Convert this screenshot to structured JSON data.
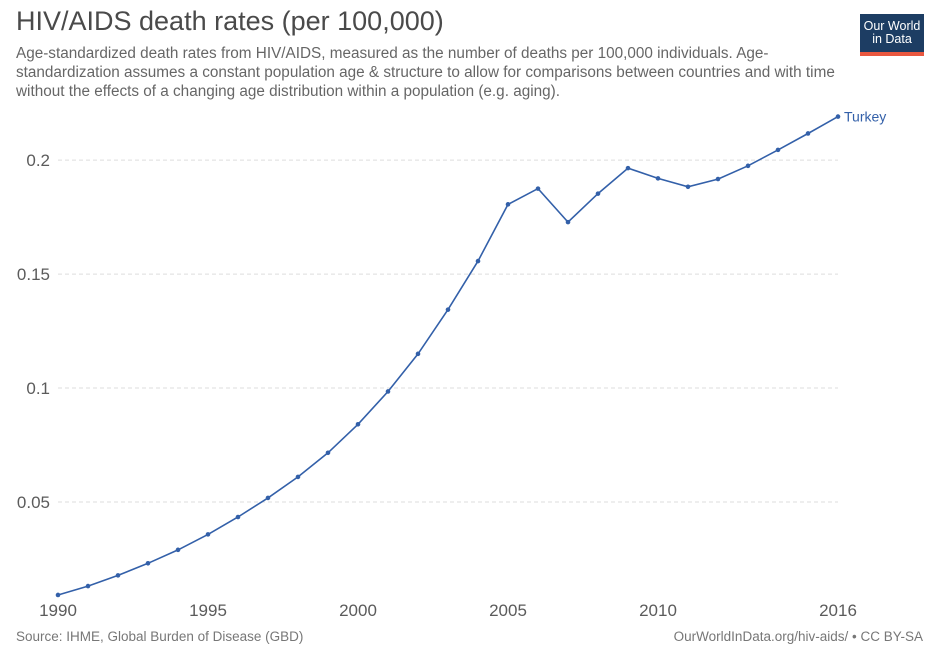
{
  "header": {
    "title": "HIV/AIDS death rates (per 100,000)",
    "subtitle": "Age-standardized death rates from HIV/AIDS, measured as the number of deaths per 100,000 individuals. Age-standardization assumes a constant population age & structure to allow for comparisons between countries and with time without the effects of a changing age distribution within a population (e.g. aging).",
    "logo_line1": "Our World",
    "logo_line2": "in Data"
  },
  "footer": {
    "source": "Source: IHME, Global Burden of Disease (GBD)",
    "license": "OurWorldInData.org/hiv-aids/ • CC BY-SA"
  },
  "colors": {
    "series": "#3360a9",
    "grid": "#dddddd",
    "logo_bg": "#1d3d63",
    "logo_accent": "#e9573f"
  },
  "chart_data": {
    "type": "line",
    "title": "HIV/AIDS death rates (per 100,000)",
    "xlabel": "",
    "ylabel": "",
    "xlim": [
      1990,
      2016
    ],
    "ylim": [
      0.007,
      0.222
    ],
    "x_ticks": [
      "1990",
      "1995",
      "2000",
      "2005",
      "2010",
      "2016"
    ],
    "y_ticks": [
      "0.05",
      "0.1",
      "0.15",
      "0.2"
    ],
    "grid": true,
    "x": [
      1990,
      1991,
      1992,
      1993,
      1994,
      1995,
      1996,
      1997,
      1998,
      1999,
      2000,
      2001,
      2002,
      2003,
      2004,
      2005,
      2006,
      2007,
      2008,
      2009,
      2010,
      2011,
      2012,
      2013,
      2014,
      2015,
      2016
    ],
    "series": [
      {
        "name": "Turkey",
        "values": [
          0.0092,
          0.0131,
          0.0178,
          0.0231,
          0.029,
          0.0358,
          0.0434,
          0.0518,
          0.061,
          0.0716,
          0.0841,
          0.0985,
          0.115,
          0.1344,
          0.1557,
          0.1806,
          0.1875,
          0.1728,
          0.1853,
          0.1965,
          0.192,
          0.1883,
          0.1917,
          0.1975,
          0.2045,
          0.2117,
          0.2191
        ]
      }
    ]
  }
}
